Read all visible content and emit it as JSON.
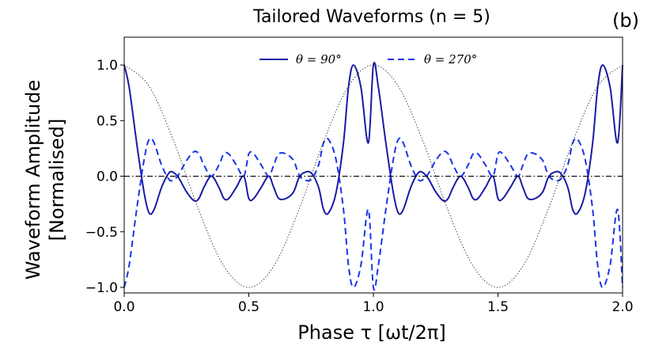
{
  "chart_data": {
    "type": "line",
    "title": "Tailored Waveforms (n = 5)",
    "panel_label": "(b)",
    "xlabel": "Phase τ [ωt/2π]",
    "ylabel_line1": "Waveform Amplitude",
    "ylabel_line2": "[Normalised]",
    "xlim": [
      0.0,
      2.0
    ],
    "ylim": [
      -1.05,
      1.25
    ],
    "xticks": [
      0.0,
      0.5,
      1.0,
      1.5,
      2.0
    ],
    "xtick_labels": [
      "0.0",
      "0.5",
      "1.0",
      "1.5",
      "2.0"
    ],
    "yticks": [
      -1.0,
      -0.5,
      0.0,
      0.5,
      1.0
    ],
    "ytick_labels": [
      "−1.0",
      "−0.5",
      "0.0",
      "0.5",
      "1.0"
    ],
    "grid": false,
    "legend_position": "top-center",
    "series": [
      {
        "name": "θ = 90°",
        "style": "solid",
        "color": "#1a1aa6",
        "x": [
          0.0,
          0.02,
          0.05,
          0.08,
          0.1,
          0.12,
          0.15,
          0.18,
          0.2,
          0.22,
          0.25,
          0.28,
          0.3,
          0.32,
          0.35,
          0.38,
          0.4,
          0.42,
          0.45,
          0.48,
          0.5,
          0.52,
          0.55,
          0.58,
          0.6,
          0.62,
          0.65,
          0.68,
          0.7,
          0.72,
          0.75,
          0.78,
          0.8,
          0.82,
          0.85,
          0.88,
          0.9,
          0.92,
          0.95,
          0.98,
          1.0,
          1.02,
          1.05,
          1.08,
          1.1,
          1.12,
          1.15,
          1.18,
          1.2,
          1.22,
          1.25,
          1.28,
          1.3,
          1.32,
          1.35,
          1.38,
          1.4,
          1.42,
          1.45,
          1.48,
          1.5,
          1.52,
          1.55,
          1.58,
          1.6,
          1.62,
          1.65,
          1.68,
          1.7,
          1.72,
          1.75,
          1.78,
          1.8,
          1.82,
          1.85,
          1.88,
          1.9,
          1.92,
          1.95,
          1.98,
          2.0
        ],
        "y": [
          1.0,
          0.8,
          0.3,
          -0.15,
          -0.33,
          -0.3,
          -0.1,
          0.03,
          0.03,
          -0.02,
          -0.14,
          -0.22,
          -0.2,
          -0.1,
          0.0,
          -0.1,
          -0.2,
          -0.2,
          -0.1,
          0.0,
          -0.2,
          -0.2,
          -0.1,
          0.0,
          -0.1,
          -0.2,
          -0.2,
          -0.14,
          -0.02,
          0.03,
          0.03,
          -0.1,
          -0.3,
          -0.33,
          -0.15,
          0.3,
          0.8,
          1.0,
          0.8,
          0.3,
          1.0,
          0.8,
          0.3,
          -0.15,
          -0.33,
          -0.3,
          -0.1,
          0.03,
          0.03,
          -0.02,
          -0.14,
          -0.22,
          -0.2,
          -0.1,
          0.0,
          -0.1,
          -0.2,
          -0.2,
          -0.1,
          0.0,
          -0.2,
          -0.2,
          -0.1,
          0.0,
          -0.1,
          -0.2,
          -0.2,
          -0.14,
          -0.02,
          0.03,
          0.03,
          -0.1,
          -0.3,
          -0.33,
          -0.15,
          0.3,
          0.8,
          1.0,
          0.8,
          0.3,
          1.0
        ]
      },
      {
        "name": "θ = 270°",
        "style": "dashed",
        "color": "#1a35e6",
        "x": [
          0.0,
          0.02,
          0.05,
          0.08,
          0.1,
          0.12,
          0.15,
          0.18,
          0.2,
          0.22,
          0.25,
          0.28,
          0.3,
          0.32,
          0.35,
          0.38,
          0.4,
          0.42,
          0.45,
          0.48,
          0.5,
          0.52,
          0.55,
          0.58,
          0.6,
          0.62,
          0.65,
          0.68,
          0.7,
          0.72,
          0.75,
          0.78,
          0.8,
          0.82,
          0.85,
          0.88,
          0.9,
          0.92,
          0.95,
          0.98,
          1.0,
          1.02,
          1.05,
          1.08,
          1.1,
          1.12,
          1.15,
          1.18,
          1.2,
          1.22,
          1.25,
          1.28,
          1.3,
          1.32,
          1.35,
          1.38,
          1.4,
          1.42,
          1.45,
          1.48,
          1.5,
          1.52,
          1.55,
          1.58,
          1.6,
          1.62,
          1.65,
          1.68,
          1.7,
          1.72,
          1.75,
          1.78,
          1.8,
          1.82,
          1.85,
          1.88,
          1.9,
          1.92,
          1.95,
          1.98,
          2.0
        ],
        "y": [
          -1.0,
          -0.8,
          -0.3,
          0.15,
          0.33,
          0.3,
          0.1,
          -0.03,
          -0.03,
          0.02,
          0.14,
          0.22,
          0.2,
          0.1,
          0.0,
          0.1,
          0.2,
          0.2,
          0.1,
          0.0,
          0.2,
          0.2,
          0.1,
          0.0,
          0.1,
          0.2,
          0.2,
          0.14,
          0.02,
          -0.03,
          -0.03,
          0.1,
          0.3,
          0.33,
          0.15,
          -0.3,
          -0.8,
          -1.0,
          -0.8,
          -0.3,
          -1.0,
          -0.8,
          -0.3,
          0.15,
          0.33,
          0.3,
          0.1,
          -0.03,
          -0.03,
          0.02,
          0.14,
          0.22,
          0.2,
          0.1,
          0.0,
          0.1,
          0.2,
          0.2,
          0.1,
          0.0,
          0.2,
          0.2,
          0.1,
          0.0,
          0.1,
          0.2,
          0.2,
          0.14,
          0.02,
          -0.03,
          -0.03,
          0.1,
          0.3,
          0.33,
          0.15,
          -0.3,
          -0.8,
          -1.0,
          -0.8,
          -0.3,
          -1.0
        ]
      },
      {
        "name": "",
        "style": "dotted",
        "color": "#222222",
        "x": [
          0.0,
          0.1,
          0.2,
          0.3,
          0.4,
          0.5,
          0.6,
          0.7,
          0.8,
          0.9,
          1.0,
          1.1,
          1.2,
          1.3,
          1.4,
          1.5,
          1.6,
          1.7,
          1.8,
          1.9,
          2.0
        ],
        "y": [
          1.0,
          0.809,
          0.309,
          -0.309,
          -0.809,
          -1.0,
          -0.809,
          -0.309,
          0.309,
          0.809,
          1.0,
          0.809,
          0.309,
          -0.309,
          -0.809,
          -1.0,
          -0.809,
          -0.309,
          0.309,
          0.809,
          1.0
        ]
      },
      {
        "name": "",
        "style": "dashdot",
        "color": "#000000",
        "x": [
          0.0,
          2.0
        ],
        "y": [
          0.0,
          0.0
        ]
      }
    ]
  }
}
